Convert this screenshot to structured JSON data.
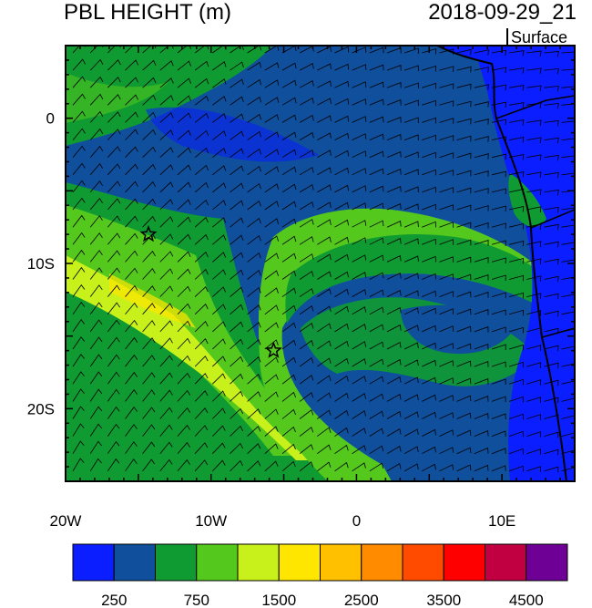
{
  "header": {
    "title": "PBL HEIGHT (m)",
    "datetime": "2018-09-29_21",
    "level": "Surface"
  },
  "map": {
    "variable": "Planetary boundary layer height",
    "units": "m",
    "lon_range": [
      -20,
      15
    ],
    "lat_range": [
      -25,
      5
    ],
    "x_ticks": [
      {
        "lon": -20,
        "label": "20W"
      },
      {
        "lon": -10,
        "label": "10W"
      },
      {
        "lon": 0,
        "label": "0"
      },
      {
        "lon": 10,
        "label": "10E"
      }
    ],
    "y_ticks": [
      {
        "lat": 0,
        "label": "0"
      },
      {
        "lat": -10,
        "label": "10S"
      },
      {
        "lat": -20,
        "label": "20S"
      }
    ],
    "markers": [
      {
        "name": "star-marker-1",
        "lon": -14.3,
        "lat": -8.0
      },
      {
        "name": "star-marker-2",
        "lon": -5.7,
        "lat": -16.0
      }
    ],
    "overlay": "surface wind barbs"
  },
  "colorbar": {
    "colors": [
      "#0a1eff",
      "#0f4f9c",
      "#0f9b32",
      "#55c81e",
      "#c8f01a",
      "#ffe600",
      "#ffc000",
      "#ff8c00",
      "#ff4b00",
      "#ff0000",
      "#c00040",
      "#6e0096"
    ],
    "labels": [
      {
        "index": 1,
        "text": "250"
      },
      {
        "index": 3,
        "text": "750"
      },
      {
        "index": 5,
        "text": "1500"
      },
      {
        "index": 7,
        "text": "2500"
      },
      {
        "index": 9,
        "text": "3500"
      },
      {
        "index": 11,
        "text": "4500"
      }
    ]
  }
}
